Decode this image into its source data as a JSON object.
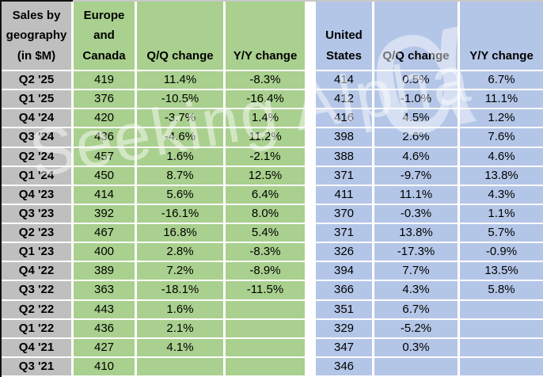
{
  "title": "Sales by geography (in $M)",
  "header": {
    "corner": "Sales by\ngeography\n(in $M)",
    "europe_canada": "Europe\nand\nCanada",
    "qq_change_left": "Q/Q change",
    "yy_change_left": "Y/Y change",
    "united_states": "United\nStates",
    "qq_change_right": "Q/Q change",
    "yy_change_right": "Y/Y change"
  },
  "rows": [
    {
      "quarter": "Q2 '25",
      "ec": "419",
      "ec_qq": "11.4%",
      "ec_yy": "-8.3%",
      "us": "414",
      "us_qq": "0.5%",
      "us_yy": "6.7%"
    },
    {
      "quarter": "Q1 '25",
      "ec": "376",
      "ec_qq": "-10.5%",
      "ec_yy": "-16.4%",
      "us": "412",
      "us_qq": "-1.0%",
      "us_yy": "11.1%"
    },
    {
      "quarter": "Q4 '24",
      "ec": "420",
      "ec_qq": "-3.7%",
      "ec_yy": "1.4%",
      "us": "416",
      "us_qq": "4.5%",
      "us_yy": "1.2%"
    },
    {
      "quarter": "Q3 '24",
      "ec": "436",
      "ec_qq": "-4.6%",
      "ec_yy": "11.2%",
      "us": "398",
      "us_qq": "2.6%",
      "us_yy": "7.6%"
    },
    {
      "quarter": "Q2 '24",
      "ec": "457",
      "ec_qq": "1.6%",
      "ec_yy": "-2.1%",
      "us": "388",
      "us_qq": "4.6%",
      "us_yy": "4.6%"
    },
    {
      "quarter": "Q1 '24",
      "ec": "450",
      "ec_qq": "8.7%",
      "ec_yy": "12.5%",
      "us": "371",
      "us_qq": "-9.7%",
      "us_yy": "13.8%"
    },
    {
      "quarter": "Q4 '23",
      "ec": "414",
      "ec_qq": "5.6%",
      "ec_yy": "6.4%",
      "us": "411",
      "us_qq": "11.1%",
      "us_yy": "4.3%"
    },
    {
      "quarter": "Q3 '23",
      "ec": "392",
      "ec_qq": "-16.1%",
      "ec_yy": "8.0%",
      "us": "370",
      "us_qq": "-0.3%",
      "us_yy": "1.1%"
    },
    {
      "quarter": "Q2 '23",
      "ec": "467",
      "ec_qq": "16.8%",
      "ec_yy": "5.4%",
      "us": "371",
      "us_qq": "13.8%",
      "us_yy": "5.7%"
    },
    {
      "quarter": "Q1 '23",
      "ec": "400",
      "ec_qq": "2.8%",
      "ec_yy": "-8.3%",
      "us": "326",
      "us_qq": "-17.3%",
      "us_yy": "-0.9%"
    },
    {
      "quarter": "Q4 '22",
      "ec": "389",
      "ec_qq": "7.2%",
      "ec_yy": "-8.9%",
      "us": "394",
      "us_qq": "7.7%",
      "us_yy": "13.5%"
    },
    {
      "quarter": "Q3 '22",
      "ec": "363",
      "ec_qq": "-18.1%",
      "ec_yy": "-11.5%",
      "us": "366",
      "us_qq": "4.3%",
      "us_yy": "5.8%"
    },
    {
      "quarter": "Q2 '22",
      "ec": "443",
      "ec_qq": "1.6%",
      "ec_yy": "",
      "us": "351",
      "us_qq": "6.7%",
      "us_yy": ""
    },
    {
      "quarter": "Q1 '22",
      "ec": "436",
      "ec_qq": "2.1%",
      "ec_yy": "",
      "us": "329",
      "us_qq": "-5.2%",
      "us_yy": ""
    },
    {
      "quarter": "Q4 '21",
      "ec": "427",
      "ec_qq": "4.1%",
      "ec_yy": "",
      "us": "347",
      "us_qq": "0.3%",
      "us_yy": ""
    },
    {
      "quarter": "Q3 '21",
      "ec": "410",
      "ec_qq": "",
      "ec_yy": "",
      "us": "346",
      "us_qq": "",
      "us_yy": ""
    }
  ],
  "watermark": {
    "text": "Seeking Alpha",
    "alpha_symbol": "α"
  },
  "colors": {
    "quarter_gray": "#BFBFBF",
    "europe_canada_green": "#A9D08E",
    "united_states_blue": "#B4C6E7",
    "gridline_white": "#FFFFFF",
    "text_black": "#000000"
  },
  "chart_data": {
    "type": "table",
    "title": "Sales by geography (in $M)",
    "categories": [
      "Q2 '25",
      "Q1 '25",
      "Q4 '24",
      "Q3 '24",
      "Q2 '24",
      "Q1 '24",
      "Q4 '23",
      "Q3 '23",
      "Q2 '23",
      "Q1 '23",
      "Q4 '22",
      "Q3 '22",
      "Q2 '22",
      "Q1 '22",
      "Q4 '21",
      "Q3 '21"
    ],
    "series": [
      {
        "name": "Europe and Canada ($M)",
        "values": [
          419,
          376,
          420,
          436,
          457,
          450,
          414,
          392,
          467,
          400,
          389,
          363,
          443,
          436,
          427,
          410
        ]
      },
      {
        "name": "Europe and Canada Q/Q change",
        "values": [
          "11.4%",
          "-10.5%",
          "-3.7%",
          "-4.6%",
          "1.6%",
          "8.7%",
          "5.6%",
          "-16.1%",
          "16.8%",
          "2.8%",
          "7.2%",
          "-18.1%",
          "1.6%",
          "2.1%",
          "4.1%",
          null
        ]
      },
      {
        "name": "Europe and Canada Y/Y change",
        "values": [
          "-8.3%",
          "-16.4%",
          "1.4%",
          "11.2%",
          "-2.1%",
          "12.5%",
          "6.4%",
          "8.0%",
          "5.4%",
          "-8.3%",
          "-8.9%",
          "-11.5%",
          null,
          null,
          null,
          null
        ]
      },
      {
        "name": "United States ($M)",
        "values": [
          414,
          412,
          416,
          398,
          388,
          371,
          411,
          370,
          371,
          326,
          394,
          366,
          351,
          329,
          347,
          346
        ]
      },
      {
        "name": "United States Q/Q change",
        "values": [
          "0.5%",
          "-1.0%",
          "4.5%",
          "2.6%",
          "4.6%",
          "-9.7%",
          "11.1%",
          "-0.3%",
          "13.8%",
          "-17.3%",
          "7.7%",
          "4.3%",
          "6.7%",
          "-5.2%",
          "0.3%",
          null
        ]
      },
      {
        "name": "United States Y/Y change",
        "values": [
          "6.7%",
          "11.1%",
          "1.2%",
          "7.6%",
          "4.6%",
          "13.8%",
          "4.3%",
          "1.1%",
          "5.7%",
          "-0.9%",
          "13.5%",
          "5.8%",
          null,
          null,
          null,
          null
        ]
      }
    ],
    "layout": {
      "orientation": "quarters-as-rows, newest-first",
      "grid": "white gridlines",
      "group_colors": {
        "Europe and Canada": "#A9D08E",
        "United States": "#B4C6E7"
      }
    }
  }
}
